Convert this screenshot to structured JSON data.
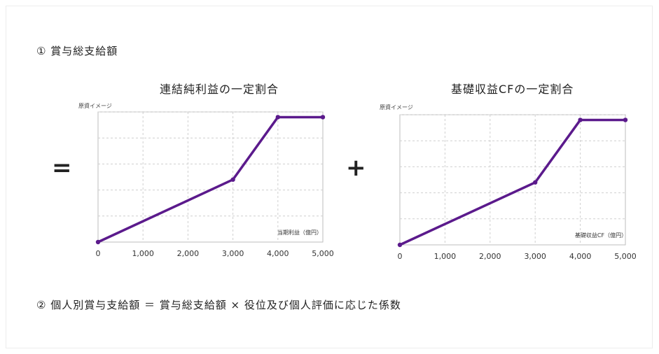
{
  "heading1": "① 賞与総支給額",
  "heading2": "② 個人別賞与支給額 ＝ 賞与総支給額 × 役位及び個人評価に応じた係数",
  "operators": {
    "equals": "=",
    "plus": "+"
  },
  "colors": {
    "line": "#5b1a8c",
    "grid": "#cfcfcf",
    "axis": "#bdbdbd"
  },
  "chart_data": [
    {
      "type": "line",
      "title": "連結純利益の一定割合",
      "ylabel": "原資イメージ",
      "xlabel": "当期利益（億円）",
      "xticks": [
        "0",
        "1,000",
        "2,000",
        "3,000",
        "4,000",
        "5,000"
      ],
      "xlim": [
        0,
        5000
      ],
      "ylim": [
        0,
        5
      ],
      "grid": true,
      "series": [
        {
          "x": [
            0,
            3000,
            4000,
            5000
          ],
          "y": [
            0,
            2.4,
            4.8,
            4.8
          ]
        }
      ]
    },
    {
      "type": "line",
      "title": "基礎収益CFの一定割合",
      "ylabel": "原資イメージ",
      "xlabel": "基礎収益CF（億円）",
      "xticks": [
        "0",
        "1,000",
        "2,000",
        "3,000",
        "4,000",
        "5,000"
      ],
      "xlim": [
        0,
        5000
      ],
      "ylim": [
        0,
        5
      ],
      "grid": true,
      "series": [
        {
          "x": [
            0,
            3000,
            4000,
            5000
          ],
          "y": [
            0,
            2.4,
            4.8,
            4.8
          ]
        }
      ]
    }
  ]
}
